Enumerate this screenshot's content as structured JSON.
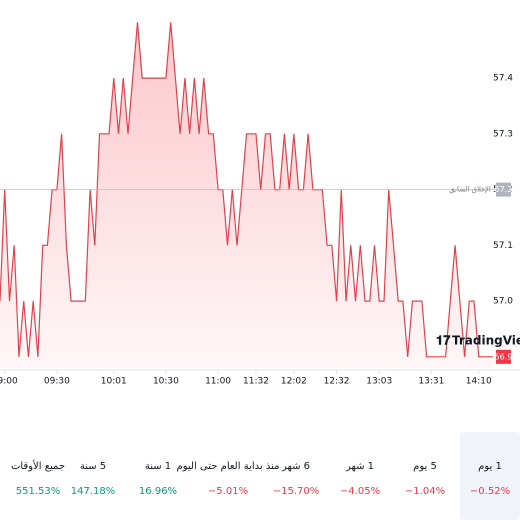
{
  "chart_data": {
    "type": "line",
    "color": "#e0424b",
    "grid": false,
    "values": [
      57.0,
      57.2,
      57.0,
      57.1,
      56.9,
      57.0,
      56.9,
      57.0,
      56.9,
      57.1,
      57.1,
      57.2,
      57.2,
      57.3,
      57.1,
      57.0,
      57.0,
      57.0,
      57.0,
      57.2,
      57.1,
      57.3,
      57.3,
      57.3,
      57.4,
      57.3,
      57.4,
      57.3,
      57.4,
      57.5,
      57.4,
      57.4,
      57.4,
      57.4,
      57.4,
      57.4,
      57.5,
      57.4,
      57.3,
      57.4,
      57.3,
      57.4,
      57.3,
      57.4,
      57.3,
      57.3,
      57.2,
      57.2,
      57.1,
      57.2,
      57.1,
      57.2,
      57.3,
      57.3,
      57.3,
      57.2,
      57.3,
      57.3,
      57.2,
      57.2,
      57.3,
      57.2,
      57.3,
      57.2,
      57.2,
      57.3,
      57.2,
      57.2,
      57.2,
      57.1,
      57.1,
      57.0,
      57.2,
      57.0,
      57.1,
      57.0,
      57.1,
      57.0,
      57.0,
      57.1,
      57.0,
      57.0,
      57.2,
      57.1,
      57.0,
      57.0,
      56.9,
      57.0,
      57.0,
      57.0,
      56.9,
      56.9,
      56.9,
      56.9,
      56.9,
      57.0,
      57.1,
      57.0,
      56.9,
      57.0,
      57.0,
      56.9,
      56.9,
      56.9,
      56.9
    ],
    "xlim": [
      0,
      104
    ],
    "xticks": [
      {
        "value": 1,
        "label": "09:00"
      },
      {
        "value": 12,
        "label": "09:30"
      },
      {
        "value": 24,
        "label": "10:01"
      },
      {
        "value": 35,
        "label": "10:30"
      },
      {
        "value": 46,
        "label": "11:00"
      },
      {
        "value": 54,
        "label": "11:32"
      },
      {
        "value": 62,
        "label": "12:02"
      },
      {
        "value": 71,
        "label": "12:32"
      },
      {
        "value": 80,
        "label": "13:03"
      },
      {
        "value": 91,
        "label": "13:31"
      },
      {
        "value": 101,
        "label": "14:10"
      }
    ],
    "ylim": [
      56.88,
      57.54
    ],
    "yticks": [
      {
        "value": 57,
        "label": "57.0"
      },
      57.1,
      57.2,
      57.3,
      57.4
    ],
    "previous_close": {
      "label": "الإغلاق السابق",
      "value": 57.2
    },
    "last_price": 56.9,
    "watermark": "TradingView"
  },
  "periods": [
    {
      "label": "1 يوم",
      "value": -0.52,
      "value_label": "−0.52%"
    },
    {
      "label": "5 يوم",
      "value": -1.04,
      "value_label": "−1.04%"
    },
    {
      "label": "1 شهر",
      "value": -4.05,
      "value_label": "−4.05%"
    },
    {
      "label": "6 شهر",
      "value": -15.7,
      "value_label": "−15.70%"
    },
    {
      "label": "منذ بداية العام حتى اليوم",
      "value": -5.01,
      "value_label": "−5.01%"
    },
    {
      "label": "1 سنة",
      "value": 16.96,
      "value_label": "16.96%"
    },
    {
      "label": "5 سنة",
      "value": 147.18,
      "value_label": "147.18%"
    },
    {
      "label": "جميع الأوقات",
      "value": 551.53,
      "value_label": "551.53%"
    }
  ]
}
